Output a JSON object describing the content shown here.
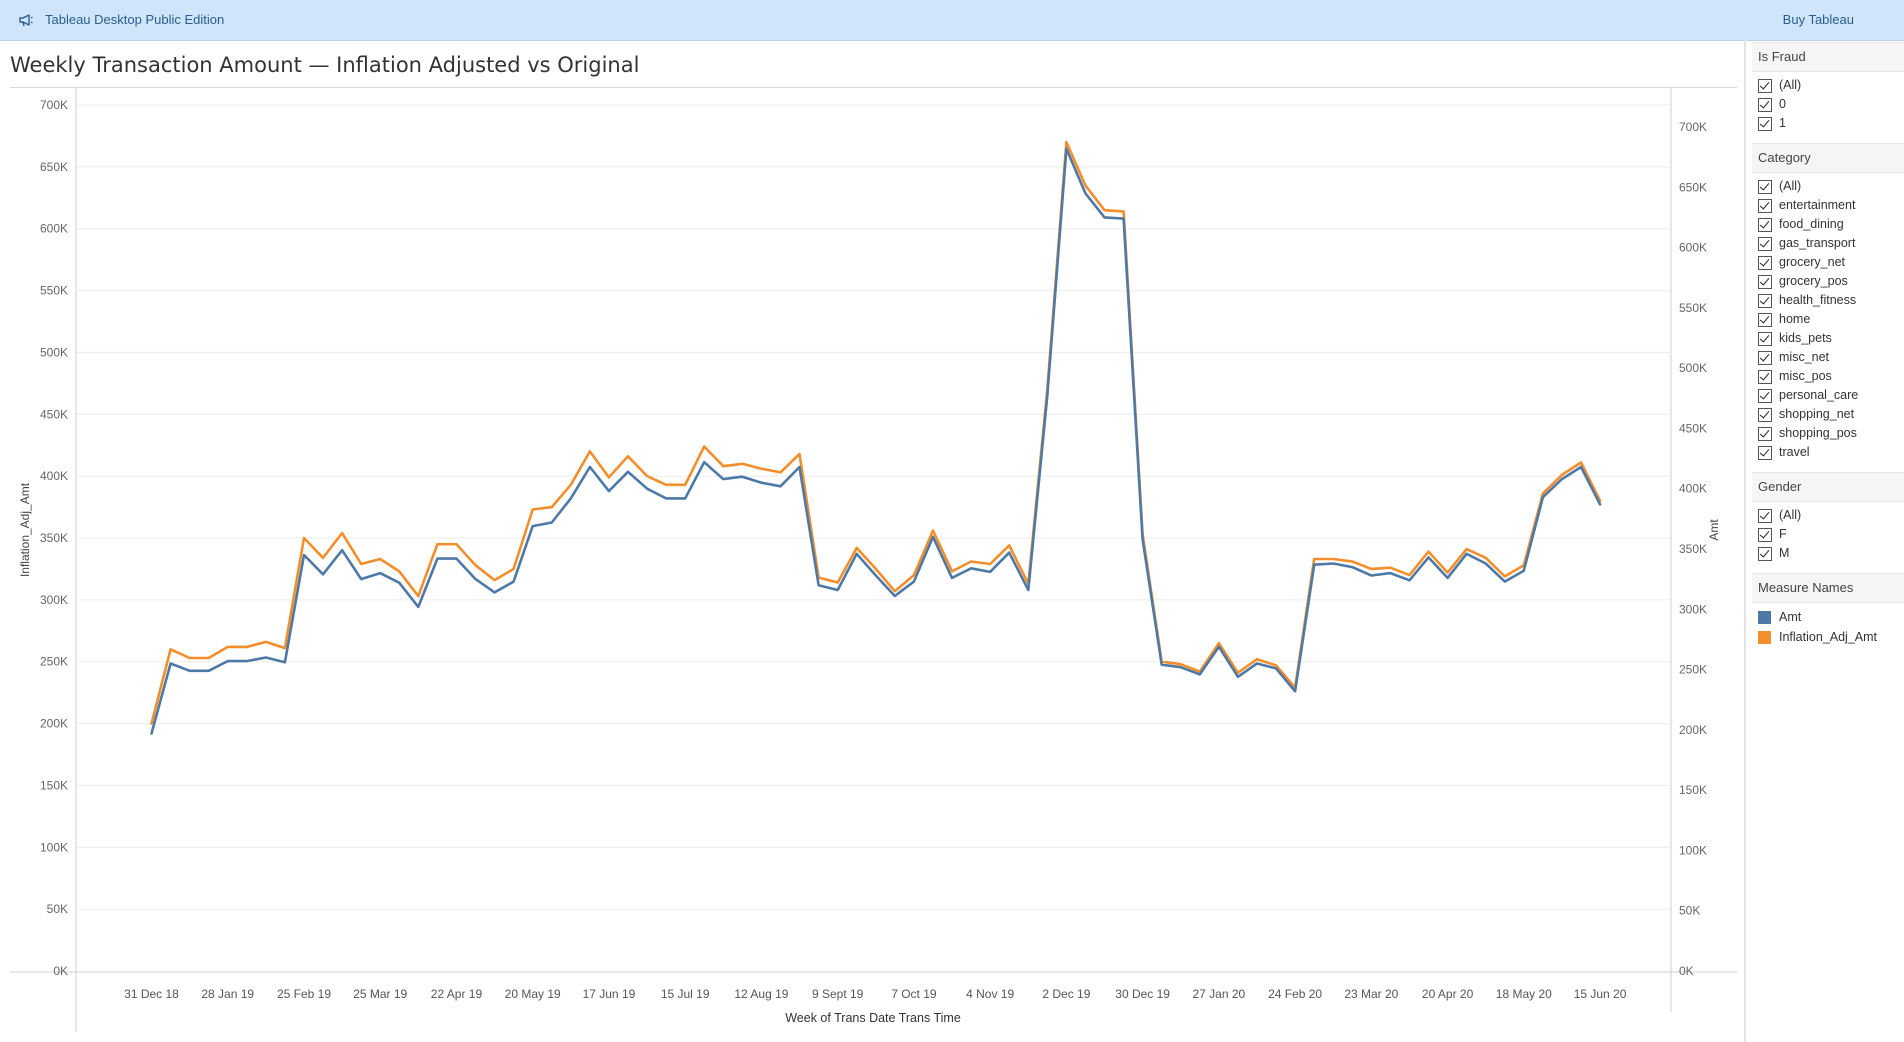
{
  "app": {
    "title": "Tableau Desktop Public Edition",
    "buy_label": "Buy Tableau"
  },
  "filters": {
    "is_fraud": {
      "title": "Is Fraud",
      "options": [
        "(All)",
        "0",
        "1"
      ]
    },
    "category": {
      "title": "Category",
      "options": [
        "(All)",
        "entertainment",
        "food_dining",
        "gas_transport",
        "grocery_net",
        "grocery_pos",
        "health_fitness",
        "home",
        "kids_pets",
        "misc_net",
        "misc_pos",
        "personal_care",
        "shopping_net",
        "shopping_pos",
        "travel"
      ]
    },
    "gender": {
      "title": "Gender",
      "options": [
        "(All)",
        "F",
        "M"
      ]
    }
  },
  "legend": {
    "title": "Measure Names",
    "items": [
      {
        "name": "Amt",
        "color": "#4e79a7"
      },
      {
        "name": "Inflation_Adj_Amt",
        "color": "#f28e2b"
      }
    ]
  },
  "chart_data": {
    "type": "line",
    "title": "Weekly Transaction Amount — Inflation Adjusted vs Original",
    "xlabel": "Week of Trans Date Trans Time",
    "ylabel": "Inflation_Adj_Amt",
    "y2label": "Amt",
    "x_ticks": [
      "31 Dec 18",
      "28 Jan 19",
      "25 Feb 19",
      "25 Mar 19",
      "22 Apr 19",
      "20 May 19",
      "17 Jun 19",
      "15 Jul 19",
      "12 Aug 19",
      "9 Sept 19",
      "7 Oct 19",
      "4 Nov 19",
      "2 Dec 19",
      "30 Dec 19",
      "27 Jan 20",
      "24 Feb 20",
      "23 Mar 20",
      "20 Apr 20",
      "18 May 20",
      "15 Jun 20"
    ],
    "y_ticks": [
      "0K",
      "50K",
      "100K",
      "150K",
      "200K",
      "250K",
      "300K",
      "350K",
      "400K",
      "450K",
      "500K",
      "550K",
      "600K",
      "650K",
      "700K"
    ],
    "y2_ticks": [
      "0K",
      "50K",
      "100K",
      "150K",
      "200K",
      "250K",
      "300K",
      "350K",
      "400K",
      "450K",
      "500K",
      "550K",
      "600K",
      "650K",
      "700K"
    ],
    "ylim": [
      0,
      700000
    ],
    "y2lim": [
      0,
      710000
    ],
    "grid": true,
    "series": [
      {
        "name": "Amt",
        "color": "#4e79a7",
        "axis": "right",
        "values": [
          197,
          255,
          249,
          249,
          257,
          257,
          260,
          256,
          345,
          329,
          349,
          325,
          330,
          322,
          302,
          342,
          342,
          325,
          314,
          323,
          369,
          372,
          392,
          418,
          398,
          414,
          400,
          392,
          392,
          422,
          408,
          410,
          405,
          402,
          418,
          320,
          316,
          346,
          328,
          311,
          323,
          360,
          326,
          334,
          331,
          347,
          316,
          477,
          682,
          645,
          625,
          624,
          358,
          254,
          252,
          246,
          269,
          244,
          255,
          251,
          232,
          337,
          338,
          335,
          328,
          330,
          324,
          343,
          326,
          346,
          338,
          323,
          332,
          393,
          408,
          418,
          387
        ]
      },
      {
        "name": "Inflation_Adj_Amt",
        "color": "#f28e2b",
        "axis": "left",
        "values": [
          200,
          260,
          253,
          253,
          262,
          262,
          266,
          261,
          350,
          334,
          354,
          329,
          333,
          323,
          303,
          345,
          345,
          328,
          316,
          325,
          373,
          375,
          393,
          420,
          399,
          416,
          400,
          393,
          393,
          424,
          408,
          410,
          406,
          403,
          418,
          318,
          314,
          342,
          325,
          307,
          320,
          356,
          323,
          331,
          329,
          344,
          313,
          470,
          670,
          635,
          615,
          614,
          353,
          250,
          248,
          242,
          265,
          241,
          252,
          247,
          229,
          333,
          333,
          331,
          325,
          326,
          320,
          339,
          322,
          341,
          334,
          319,
          328,
          386,
          401,
          411,
          380
        ]
      }
    ]
  }
}
